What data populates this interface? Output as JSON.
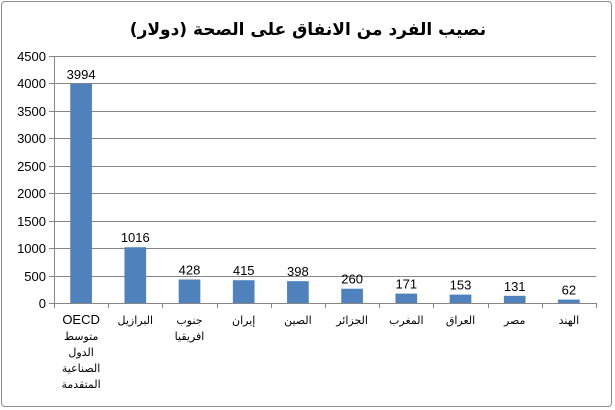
{
  "chart_data": {
    "type": "bar",
    "title": "نصيب الفرد من الانفاق على الصحة (دولار)",
    "xlabel": "",
    "ylabel": "",
    "ylim": [
      0,
      4500
    ],
    "yticks": [
      0,
      500,
      1000,
      1500,
      2000,
      2500,
      3000,
      3500,
      4000,
      4500
    ],
    "grid": true,
    "legend": "none",
    "categories": [
      [
        "OECD",
        "متوسط",
        "الدول",
        "الصناعية",
        "المتقدمة"
      ],
      [
        "البرازيل"
      ],
      [
        "جنوب",
        "افريقيا"
      ],
      [
        "إيران"
      ],
      [
        "الصين"
      ],
      [
        "الجزائر"
      ],
      [
        "المغرب"
      ],
      [
        "العراق"
      ],
      [
        "مصر"
      ],
      [
        "الهند"
      ]
    ],
    "values": [
      3994,
      1016,
      428,
      415,
      398,
      260,
      171,
      153,
      131,
      62
    ],
    "data_labels": [
      "3994",
      "1016",
      "428",
      "415",
      "398",
      "260",
      "171",
      "153",
      "131",
      "62"
    ],
    "colors": {
      "bar": "#4f81bd",
      "grid": "#868686",
      "axis": "#868686",
      "border": "#8c8c8c"
    }
  }
}
